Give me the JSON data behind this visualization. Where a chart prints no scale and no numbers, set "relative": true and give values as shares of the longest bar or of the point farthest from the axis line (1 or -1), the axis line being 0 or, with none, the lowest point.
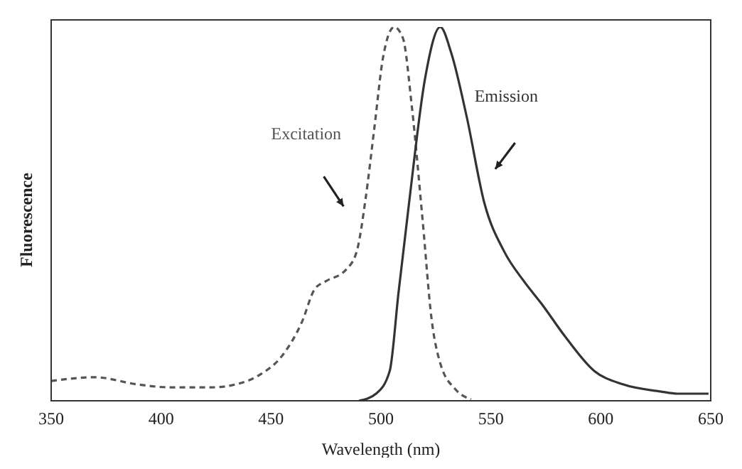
{
  "chart_data": {
    "type": "line",
    "relative": true,
    "xlabel": "Wavelength (nm)",
    "ylabel": "Fluorescence",
    "xlim": [
      350,
      650
    ],
    "xticks": [
      350,
      400,
      450,
      500,
      550,
      600,
      650
    ],
    "marker": "none",
    "series": [
      {
        "name": "Excitation",
        "color": "#555555",
        "line_style": "dashed",
        "x": [
          350,
          370,
          389,
          404,
          423,
          434,
          445,
          455,
          464,
          470,
          475,
          484,
          489,
          493,
          497,
          501,
          506,
          510,
          514,
          519,
          523,
          527,
          534,
          541
        ],
        "values": [
          0.053,
          0.063,
          0.044,
          0.036,
          0.036,
          0.044,
          0.07,
          0.12,
          0.21,
          0.3,
          0.32,
          0.35,
          0.4,
          0.54,
          0.73,
          0.92,
          1.0,
          0.97,
          0.79,
          0.48,
          0.22,
          0.1,
          0.03,
          0.004
        ]
      },
      {
        "name": "Emission",
        "color": "#333333",
        "line_style": "solid",
        "x": [
          490,
          498,
          504,
          508,
          513,
          520,
          527,
          532,
          539,
          547,
          556,
          565,
          573,
          584,
          597,
          610,
          627,
          635,
          649
        ],
        "values": [
          0,
          0.02,
          0.08,
          0.29,
          0.54,
          0.86,
          1.0,
          0.93,
          0.76,
          0.53,
          0.4,
          0.32,
          0.26,
          0.17,
          0.08,
          0.044,
          0.025,
          0.019,
          0.019
        ]
      }
    ]
  }
}
